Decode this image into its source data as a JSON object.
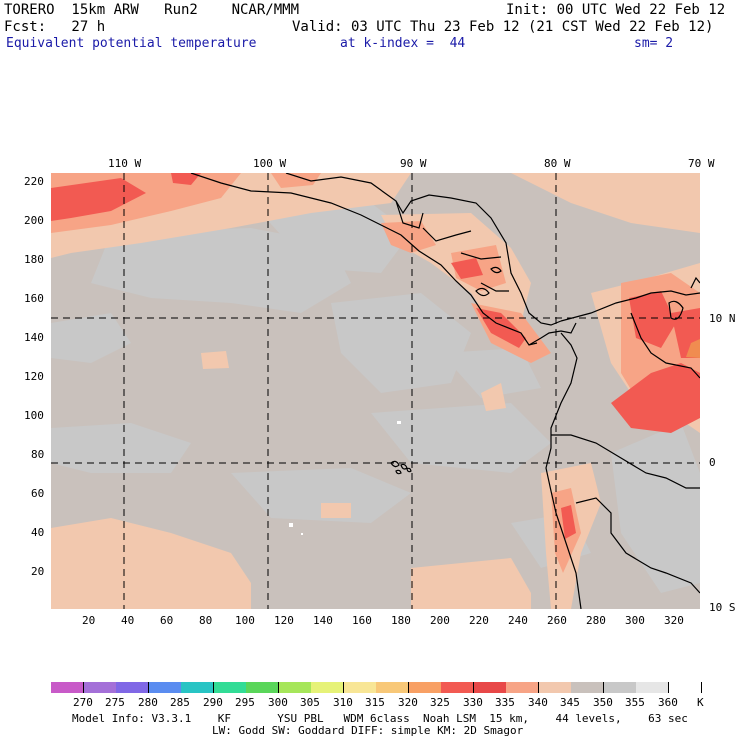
{
  "header": {
    "model": "TORERO  15km ARW   Run2    NCAR/MMM",
    "init": "Init: 00 UTC Wed 22 Feb 12",
    "fcst": "Fcst:   27 h",
    "valid": "Valid: 03 UTC Thu 23 Feb 12 (21 CST Wed 22 Feb 12)",
    "field": "Equivalent potential temperature",
    "kindex": "at k-index =  44",
    "smooth": "sm= 2"
  },
  "map": {
    "top_lon_labels": [
      "110 W",
      "100 W",
      "90 W",
      "80 W",
      "70 W"
    ],
    "right_lat_labels": [
      "10 N",
      "0",
      "10 S"
    ],
    "left_grid_labels": [
      "220",
      "200",
      "180",
      "160",
      "140",
      "120",
      "100",
      "80",
      "60",
      "40",
      "20"
    ],
    "bottom_grid_labels": [
      "20",
      "40",
      "60",
      "80",
      "100",
      "120",
      "140",
      "160",
      "180",
      "200",
      "220",
      "240",
      "260",
      "280",
      "300",
      "320"
    ],
    "colors": {
      "ocean_base": "#c9c1bc",
      "cool_patch": "#c8c8c8",
      "warm_340": "#f2c8ae",
      "warm_335": "#f7a486",
      "warm_330": "#f25a52",
      "coast": "#000000"
    }
  },
  "colorbar": {
    "labels": [
      "270",
      "275",
      "280",
      "285",
      "290",
      "295",
      "300",
      "305",
      "310",
      "315",
      "320",
      "325",
      "330",
      "335",
      "340",
      "345",
      "350",
      "355",
      "360"
    ],
    "unit": "K",
    "colors": [
      "#c85ac8",
      "#a470d8",
      "#8068e6",
      "#5a8cf0",
      "#28c4c4",
      "#32dc96",
      "#5ad65a",
      "#a6e65a",
      "#e6f278",
      "#f8e696",
      "#f8c878",
      "#f8a064",
      "#f25a52",
      "#e84848",
      "#f7a486",
      "#f2c8ae",
      "#c9c1bc",
      "#c8c8c8",
      "#e6e6e6",
      "#ffffff"
    ]
  },
  "footer": {
    "line1": "Model Info: V3.3.1    KF       YSU PBL   WDM 6class  Noah LSM  15 km,    44 levels,    63 sec",
    "line2": "LW: Godd SW: Goddard DIFF: simple KM: 2D Smagor"
  }
}
